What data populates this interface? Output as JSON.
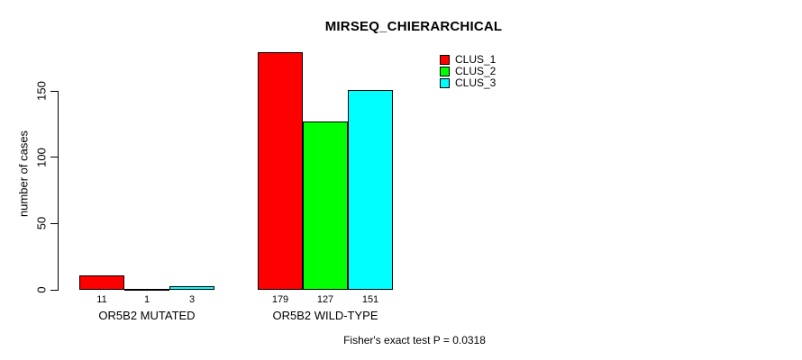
{
  "chart_data": {
    "type": "bar",
    "title": "MIRSEQ_CHIERARCHICAL",
    "ylabel": "number of cases",
    "xlabel": "",
    "categories": [
      "OR5B2 MUTATED",
      "OR5B2 WILD-TYPE"
    ],
    "series": [
      {
        "name": "CLUS_1",
        "color": "#ff0000",
        "values": [
          11,
          179
        ]
      },
      {
        "name": "CLUS_2",
        "color": "#00ff00",
        "values": [
          1,
          127
        ]
      },
      {
        "name": "CLUS_3",
        "color": "#00ffff",
        "values": [
          3,
          151
        ]
      }
    ],
    "yticks": [
      0,
      50,
      100,
      150
    ],
    "ylim": [
      0,
      179
    ],
    "grid": false,
    "bar_value_labels_shown": true,
    "legend_position": "topright",
    "annotation": "Fisher's exact test P = 0.0318"
  },
  "colors": {
    "background": "#ffffff",
    "axis": "#000000",
    "text": "#000000"
  }
}
